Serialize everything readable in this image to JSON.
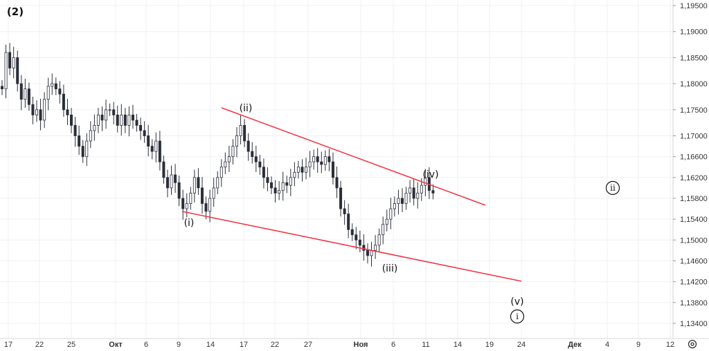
{
  "chart_data": {
    "type": "candlestick",
    "y_axis": {
      "ylim": [
        1.132,
        1.1955
      ],
      "ticks": [
        "1,19500",
        "1,19000",
        "1,18500",
        "1,18000",
        "1,17500",
        "1,17000",
        "1,16600",
        "1,16200",
        "1,15800",
        "1,15400",
        "1,15000",
        "1,14600",
        "1,14200",
        "1,13800",
        "1,13400"
      ],
      "tick_values": [
        1.195,
        1.19,
        1.185,
        1.18,
        1.175,
        1.17,
        1.166,
        1.162,
        1.158,
        1.154,
        1.15,
        1.146,
        1.142,
        1.138,
        1.134
      ]
    },
    "x_axis": {
      "ticks": [
        "17",
        "22",
        "25",
        "Окт",
        "6",
        "9",
        "14",
        "17",
        "22",
        "27",
        "Ноя",
        "6",
        "11",
        "14",
        "19",
        "24",
        "Дек",
        "4",
        "9",
        "12"
      ]
    },
    "close_series": [
      1.179,
      1.186,
      1.183,
      1.185,
      1.18,
      1.177,
      1.179,
      1.176,
      1.174,
      1.175,
      1.173,
      1.177,
      1.1795,
      1.18,
      1.179,
      1.178,
      1.175,
      1.174,
      1.172,
      1.17,
      1.168,
      1.166,
      1.169,
      1.171,
      1.172,
      1.174,
      1.173,
      1.175,
      1.175,
      1.174,
      1.172,
      1.174,
      1.172,
      1.174,
      1.173,
      1.172,
      1.171,
      1.17,
      1.168,
      1.167,
      1.169,
      1.165,
      1.162,
      1.16,
      1.1625,
      1.161,
      1.158,
      1.156,
      1.157,
      1.159,
      1.162,
      1.16,
      1.157,
      1.1555,
      1.158,
      1.16,
      1.162,
      1.164,
      1.165,
      1.166,
      1.168,
      1.17,
      1.172,
      1.169,
      1.167,
      1.166,
      1.165,
      1.164,
      1.162,
      1.161,
      1.16,
      1.159,
      1.1595,
      1.161,
      1.1605,
      1.162,
      1.163,
      1.164,
      1.163,
      1.164,
      1.165,
      1.166,
      1.165,
      1.1645,
      1.166,
      1.165,
      1.162,
      1.16,
      1.156,
      1.155,
      1.152,
      1.151,
      1.15,
      1.149,
      1.148,
      1.147,
      1.148,
      1.149,
      1.151,
      1.153,
      1.154,
      1.156,
      1.157,
      1.158,
      1.157,
      1.159,
      1.16,
      1.158,
      1.159,
      1.1605,
      1.162,
      1.1595,
      1.159
    ],
    "wave_labels": [
      {
        "text": "(2)",
        "x": 17.5,
        "y": 1.193
      },
      {
        "text": "(i)",
        "x": 10.3,
        "y": 1.153
      },
      {
        "text": "(ii)",
        "x": 17.1,
        "y": 1.1742
      },
      {
        "text": "(iii)",
        "x": 37.3,
        "y": 1.146
      },
      {
        "text": "(iv)",
        "x": 42.4,
        "y": 1.161
      },
      {
        "text": "(v)",
        "x": 51.3,
        "y": 1.1385
      }
    ],
    "circled_labels": [
      {
        "text": "ii",
        "x": 61.5,
        "y": 1.1598
      },
      {
        "text": "i",
        "x": 51.3,
        "y": 1.1362
      }
    ],
    "trendlines": [
      {
        "name": "upper",
        "color": "#f23645",
        "from": {
          "x": 15.3,
          "y": 1.175
        },
        "to": {
          "x": 48.3,
          "y": 1.1565
        }
      },
      {
        "name": "lower",
        "color": "#f23645",
        "from": {
          "x": 10.1,
          "y": 1.155
        },
        "to": {
          "x": 51.3,
          "y": 1.142
        }
      }
    ],
    "colors": {
      "up": "#26a69a",
      "down": "#ef5350",
      "line": "#f23645",
      "text": "#131722"
    }
  },
  "settings_icon": "gear-icon"
}
